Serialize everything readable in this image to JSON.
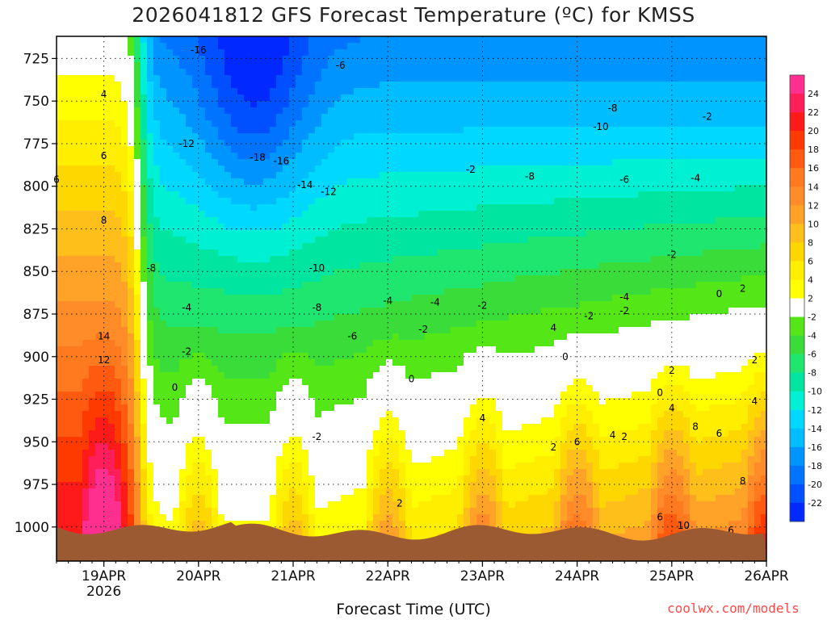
{
  "chart_data": {
    "type": "heatmap",
    "title": "2026041812 GFS Forecast Temperature (ºC) for KMSS",
    "xlabel": "Forecast Time (UTC)",
    "ylabel": "",
    "x_ticks": [
      "19APR",
      "20APR",
      "21APR",
      "22APR",
      "23APR",
      "24APR",
      "25APR",
      "26APR"
    ],
    "x_year_label": "2026",
    "xlim": [
      "2026-04-18T12",
      "2026-04-26T00"
    ],
    "y_ticks": [
      725,
      750,
      775,
      800,
      825,
      850,
      875,
      900,
      925,
      950,
      975,
      1000
    ],
    "ylim": [
      1020,
      712
    ],
    "y_scale": "pressure (top = low pressure)",
    "grid": true,
    "colorbar": {
      "labels": [
        24,
        22,
        20,
        18,
        16,
        14,
        12,
        10,
        8,
        6,
        4,
        2,
        -2,
        -4,
        -6,
        -8,
        -10,
        -12,
        -14,
        -16,
        -18,
        -20,
        -22
      ],
      "colors": [
        "#ff2f8f",
        "#ff1e5a",
        "#ff1a1a",
        "#ff3a00",
        "#ff5a10",
        "#ff7a1e",
        "#ff8c28",
        "#ffa228",
        "#ffbf1a",
        "#ffd700",
        "#ffee00",
        "#ffff00",
        "#ffffff",
        "#55e617",
        "#3adc3a",
        "#1ee66e",
        "#00e6a0",
        "#00f0d4",
        "#00d8ff",
        "#00bdff",
        "#0094ff",
        "#0074ff",
        "#0050ff",
        "#0028ff"
      ]
    },
    "contour_labels": [
      {
        "x": "2026-04-20T00",
        "y": 722,
        "text": "-16"
      },
      {
        "x": "2026-04-21T12",
        "y": 731,
        "text": "-6"
      },
      {
        "x": "2026-04-19T00",
        "y": 748,
        "text": "4"
      },
      {
        "x": "2026-04-19T00",
        "y": 784,
        "text": "6"
      },
      {
        "x": "2026-04-18T12",
        "y": 798,
        "text": "6"
      },
      {
        "x": "2026-04-19T00",
        "y": 822,
        "text": "8"
      },
      {
        "x": "2026-04-19T21",
        "y": 777,
        "text": "-12"
      },
      {
        "x": "2026-04-20T15",
        "y": 785,
        "text": "-18"
      },
      {
        "x": "2026-04-20T21",
        "y": 787,
        "text": "-16"
      },
      {
        "x": "2026-04-21T03",
        "y": 801,
        "text": "-14"
      },
      {
        "x": "2026-04-21T09",
        "y": 805,
        "text": "-12"
      },
      {
        "x": "2026-04-22T21",
        "y": 792,
        "text": "-2"
      },
      {
        "x": "2026-04-24T06",
        "y": 767,
        "text": "-10"
      },
      {
        "x": "2026-04-24T09",
        "y": 756,
        "text": "-8"
      },
      {
        "x": "2026-04-23T12",
        "y": 796,
        "text": "-8"
      },
      {
        "x": "2026-04-24T12",
        "y": 798,
        "text": "-6"
      },
      {
        "x": "2026-04-25T06",
        "y": 797,
        "text": "-4"
      },
      {
        "x": "2026-04-25T09",
        "y": 761,
        "text": "-2"
      },
      {
        "x": "2026-04-19T12",
        "y": 850,
        "text": "-8"
      },
      {
        "x": "2026-04-21T06",
        "y": 850,
        "text": "-10"
      },
      {
        "x": "2026-04-21T06",
        "y": 873,
        "text": "-8"
      },
      {
        "x": "2026-04-21T15",
        "y": 890,
        "text": "-6"
      },
      {
        "x": "2026-04-22T00",
        "y": 869,
        "text": "-4"
      },
      {
        "x": "2026-04-22T12",
        "y": 870,
        "text": "-4"
      },
      {
        "x": "2026-04-23T00",
        "y": 872,
        "text": "-2"
      },
      {
        "x": "2026-04-22T09",
        "y": 886,
        "text": "-2"
      },
      {
        "x": "2026-04-19T21",
        "y": 873,
        "text": "-4"
      },
      {
        "x": "2026-04-19T21",
        "y": 899,
        "text": "-2"
      },
      {
        "x": "2026-04-19T18",
        "y": 920,
        "text": "0"
      },
      {
        "x": "2026-04-21T06",
        "y": 949,
        "text": "-2"
      },
      {
        "x": "2026-04-22T06",
        "y": 915,
        "text": "0"
      },
      {
        "x": "2026-04-23T18",
        "y": 885,
        "text": "4"
      },
      {
        "x": "2026-04-24T03",
        "y": 878,
        "text": "-2"
      },
      {
        "x": "2026-04-24T12",
        "y": 875,
        "text": "-2"
      },
      {
        "x": "2026-04-24T12",
        "y": 867,
        "text": "-4"
      },
      {
        "x": "2026-04-25T00",
        "y": 842,
        "text": "-2"
      },
      {
        "x": "2026-04-25T12",
        "y": 865,
        "text": "0"
      },
      {
        "x": "2026-04-25T18",
        "y": 862,
        "text": "2"
      },
      {
        "x": "2026-04-23T21",
        "y": 902,
        "text": "0"
      },
      {
        "x": "2026-04-19T00",
        "y": 890,
        "text": "14"
      },
      {
        "x": "2026-04-19T00",
        "y": 904,
        "text": "12"
      },
      {
        "x": "2026-04-23T00",
        "y": 938,
        "text": "4"
      },
      {
        "x": "2026-04-22T03",
        "y": 988,
        "text": "2"
      },
      {
        "x": "2026-04-24T00",
        "y": 952,
        "text": "6"
      },
      {
        "x": "2026-04-24T09",
        "y": 948,
        "text": "4"
      },
      {
        "x": "2026-04-24T12",
        "y": 949,
        "text": "2"
      },
      {
        "x": "2026-04-23T18",
        "y": 955,
        "text": "2"
      },
      {
        "x": "2026-04-24T21",
        "y": 923,
        "text": "0"
      },
      {
        "x": "2026-04-25T00",
        "y": 910,
        "text": "2"
      },
      {
        "x": "2026-04-25T00",
        "y": 932,
        "text": "4"
      },
      {
        "x": "2026-04-25T06",
        "y": 943,
        "text": "8"
      },
      {
        "x": "2026-04-25T12",
        "y": 947,
        "text": "6"
      },
      {
        "x": "2026-04-25T21",
        "y": 928,
        "text": "4"
      },
      {
        "x": "2026-04-25T21",
        "y": 904,
        "text": "2"
      },
      {
        "x": "2026-04-25T18",
        "y": 975,
        "text": "8"
      },
      {
        "x": "2026-04-24T21",
        "y": 996,
        "text": "6"
      },
      {
        "x": "2026-04-25T03",
        "y": 1001,
        "text": "10"
      },
      {
        "x": "2026-04-25T15",
        "y": 1004,
        "text": "6"
      }
    ],
    "colors": {
      "terrain": "#9c5a32",
      "zero_line": "#c8156e",
      "contour_line": "#000000"
    }
  },
  "credit": "coolwx.com/models"
}
